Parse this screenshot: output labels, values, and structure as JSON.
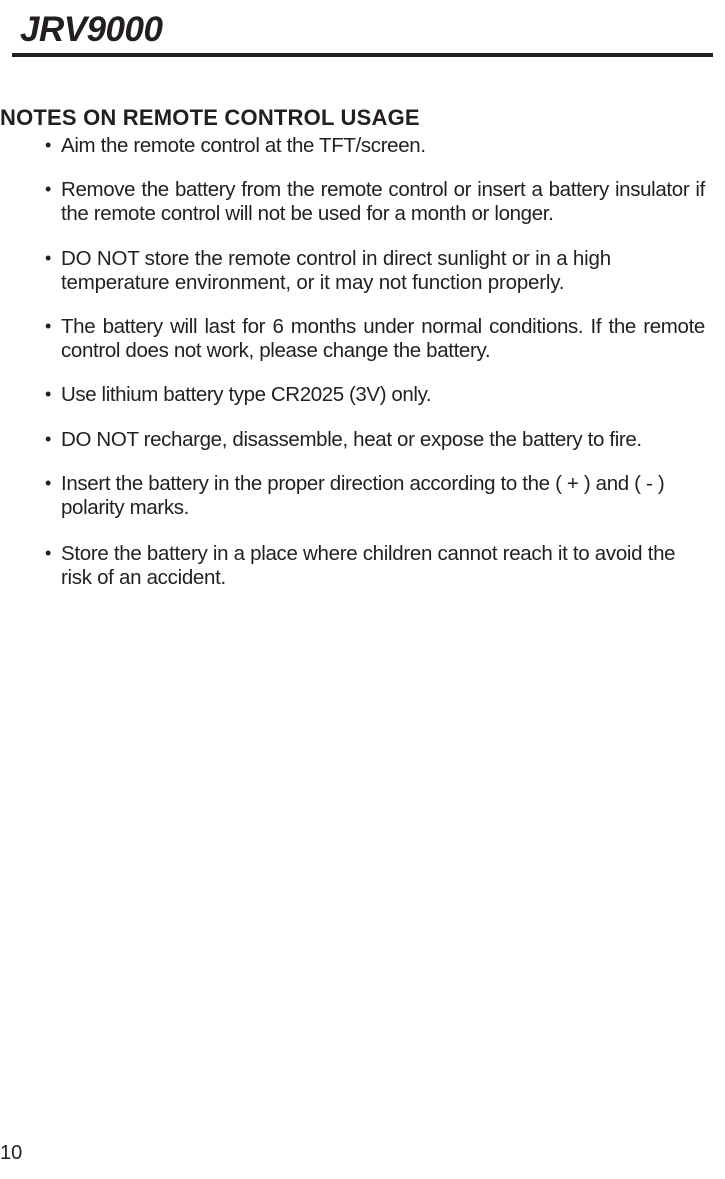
{
  "product_title": "JRV9000",
  "section_heading": "NOTES ON REMOTE CONTROL USAGE",
  "bullets": [
    "Aim the remote control at the TFT/screen.",
    "Remove the battery from the remote control or insert a battery insulator if the remote control will not be used for a month or longer.",
    "DO NOT store the remote control in direct sunlight or in a high temperature environment, or it may not function properly.",
    "The battery will last for 6 months under normal conditions. If the remote control does not work, please change the battery.",
    "Use lithium battery type CR2025 (3V) only.",
    "DO NOT recharge, disassemble, heat or expose the battery to fire.",
    "Insert the battery in the proper direction according to the ( + ) and ( - ) polarity marks.",
    "Store the battery in a place where children cannot reach it to avoid the risk of an accident."
  ],
  "page_number": "10",
  "colors": {
    "text": "#231f20",
    "background": "#ffffff",
    "rule": "#231f20"
  },
  "typography": {
    "title_fontsize_pt": 26,
    "heading_fontsize_pt": 17,
    "body_fontsize_pt": 15,
    "pagenum_fontsize_pt": 15
  }
}
